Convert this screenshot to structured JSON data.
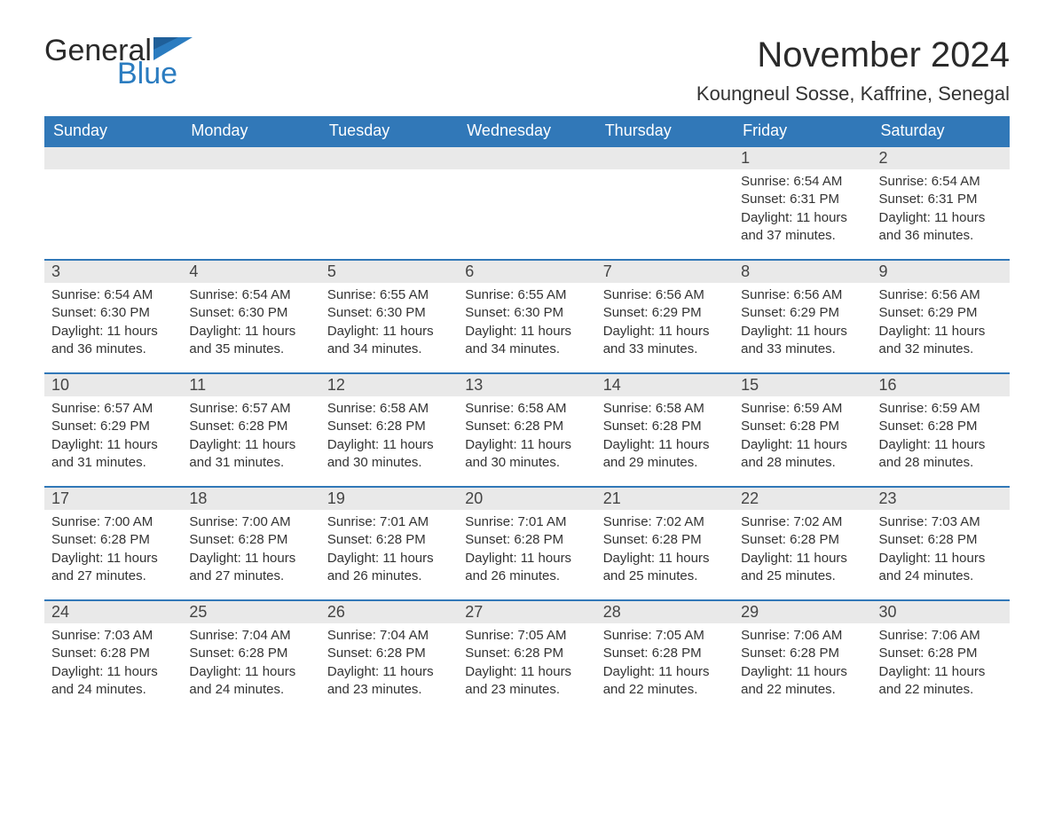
{
  "brand": {
    "word1": "General",
    "word2": "Blue"
  },
  "title": "November 2024",
  "location": "Koungneul Sosse, Kaffrine, Senegal",
  "colors": {
    "header_bg": "#3178b8",
    "header_text": "#ffffff",
    "daynum_bg": "#e9e9e9",
    "rule": "#3178b8",
    "logo_blue": "#2b7cc0",
    "text": "#333333",
    "background": "#ffffff"
  },
  "weekdays": [
    "Sunday",
    "Monday",
    "Tuesday",
    "Wednesday",
    "Thursday",
    "Friday",
    "Saturday"
  ],
  "weeks": [
    [
      null,
      null,
      null,
      null,
      null,
      {
        "n": "1",
        "sunrise": "6:54 AM",
        "sunset": "6:31 PM",
        "dl": "11 hours and 37 minutes."
      },
      {
        "n": "2",
        "sunrise": "6:54 AM",
        "sunset": "6:31 PM",
        "dl": "11 hours and 36 minutes."
      }
    ],
    [
      {
        "n": "3",
        "sunrise": "6:54 AM",
        "sunset": "6:30 PM",
        "dl": "11 hours and 36 minutes."
      },
      {
        "n": "4",
        "sunrise": "6:54 AM",
        "sunset": "6:30 PM",
        "dl": "11 hours and 35 minutes."
      },
      {
        "n": "5",
        "sunrise": "6:55 AM",
        "sunset": "6:30 PM",
        "dl": "11 hours and 34 minutes."
      },
      {
        "n": "6",
        "sunrise": "6:55 AM",
        "sunset": "6:30 PM",
        "dl": "11 hours and 34 minutes."
      },
      {
        "n": "7",
        "sunrise": "6:56 AM",
        "sunset": "6:29 PM",
        "dl": "11 hours and 33 minutes."
      },
      {
        "n": "8",
        "sunrise": "6:56 AM",
        "sunset": "6:29 PM",
        "dl": "11 hours and 33 minutes."
      },
      {
        "n": "9",
        "sunrise": "6:56 AM",
        "sunset": "6:29 PM",
        "dl": "11 hours and 32 minutes."
      }
    ],
    [
      {
        "n": "10",
        "sunrise": "6:57 AM",
        "sunset": "6:29 PM",
        "dl": "11 hours and 31 minutes."
      },
      {
        "n": "11",
        "sunrise": "6:57 AM",
        "sunset": "6:28 PM",
        "dl": "11 hours and 31 minutes."
      },
      {
        "n": "12",
        "sunrise": "6:58 AM",
        "sunset": "6:28 PM",
        "dl": "11 hours and 30 minutes."
      },
      {
        "n": "13",
        "sunrise": "6:58 AM",
        "sunset": "6:28 PM",
        "dl": "11 hours and 30 minutes."
      },
      {
        "n": "14",
        "sunrise": "6:58 AM",
        "sunset": "6:28 PM",
        "dl": "11 hours and 29 minutes."
      },
      {
        "n": "15",
        "sunrise": "6:59 AM",
        "sunset": "6:28 PM",
        "dl": "11 hours and 28 minutes."
      },
      {
        "n": "16",
        "sunrise": "6:59 AM",
        "sunset": "6:28 PM",
        "dl": "11 hours and 28 minutes."
      }
    ],
    [
      {
        "n": "17",
        "sunrise": "7:00 AM",
        "sunset": "6:28 PM",
        "dl": "11 hours and 27 minutes."
      },
      {
        "n": "18",
        "sunrise": "7:00 AM",
        "sunset": "6:28 PM",
        "dl": "11 hours and 27 minutes."
      },
      {
        "n": "19",
        "sunrise": "7:01 AM",
        "sunset": "6:28 PM",
        "dl": "11 hours and 26 minutes."
      },
      {
        "n": "20",
        "sunrise": "7:01 AM",
        "sunset": "6:28 PM",
        "dl": "11 hours and 26 minutes."
      },
      {
        "n": "21",
        "sunrise": "7:02 AM",
        "sunset": "6:28 PM",
        "dl": "11 hours and 25 minutes."
      },
      {
        "n": "22",
        "sunrise": "7:02 AM",
        "sunset": "6:28 PM",
        "dl": "11 hours and 25 minutes."
      },
      {
        "n": "23",
        "sunrise": "7:03 AM",
        "sunset": "6:28 PM",
        "dl": "11 hours and 24 minutes."
      }
    ],
    [
      {
        "n": "24",
        "sunrise": "7:03 AM",
        "sunset": "6:28 PM",
        "dl": "11 hours and 24 minutes."
      },
      {
        "n": "25",
        "sunrise": "7:04 AM",
        "sunset": "6:28 PM",
        "dl": "11 hours and 24 minutes."
      },
      {
        "n": "26",
        "sunrise": "7:04 AM",
        "sunset": "6:28 PM",
        "dl": "11 hours and 23 minutes."
      },
      {
        "n": "27",
        "sunrise": "7:05 AM",
        "sunset": "6:28 PM",
        "dl": "11 hours and 23 minutes."
      },
      {
        "n": "28",
        "sunrise": "7:05 AM",
        "sunset": "6:28 PM",
        "dl": "11 hours and 22 minutes."
      },
      {
        "n": "29",
        "sunrise": "7:06 AM",
        "sunset": "6:28 PM",
        "dl": "11 hours and 22 minutes."
      },
      {
        "n": "30",
        "sunrise": "7:06 AM",
        "sunset": "6:28 PM",
        "dl": "11 hours and 22 minutes."
      }
    ]
  ],
  "labels": {
    "sunrise": "Sunrise: ",
    "sunset": "Sunset: ",
    "daylight": "Daylight: "
  }
}
